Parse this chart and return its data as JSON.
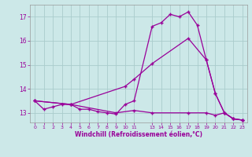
{
  "xlabel": "Windchill (Refroidissement éolien,°C)",
  "background_color": "#cce8e8",
  "grid_color": "#aacccc",
  "line_color": "#990099",
  "ylim": [
    12.6,
    17.5
  ],
  "xlim": [
    -0.5,
    23.5
  ],
  "yticks": [
    13,
    14,
    15,
    16,
    17
  ],
  "xtick_positions": [
    0,
    1,
    2,
    3,
    4,
    5,
    6,
    7,
    8,
    9,
    10,
    11,
    13,
    14,
    15,
    16,
    17,
    18,
    19,
    20,
    21,
    22,
    23
  ],
  "xtick_labels": [
    "0",
    "1",
    "2",
    "3",
    "4",
    "5",
    "6",
    "7",
    "8",
    "9",
    "10",
    "11",
    "13",
    "14",
    "15",
    "16",
    "17",
    "18",
    "19",
    "20",
    "21",
    "22",
    "23"
  ],
  "series1": [
    [
      0,
      13.5
    ],
    [
      1,
      13.15
    ],
    [
      2,
      13.25
    ],
    [
      3,
      13.35
    ],
    [
      4,
      13.35
    ],
    [
      5,
      13.15
    ],
    [
      6,
      13.15
    ],
    [
      7,
      13.05
    ],
    [
      8,
      13.0
    ],
    [
      9,
      12.95
    ],
    [
      10,
      13.35
    ],
    [
      11,
      13.5
    ],
    [
      13,
      16.6
    ],
    [
      14,
      16.75
    ],
    [
      15,
      17.1
    ],
    [
      16,
      17.0
    ],
    [
      17,
      17.2
    ],
    [
      18,
      16.65
    ],
    [
      19,
      15.2
    ],
    [
      20,
      13.8
    ],
    [
      21,
      13.0
    ],
    [
      22,
      12.75
    ],
    [
      23,
      12.7
    ]
  ],
  "series2": [
    [
      0,
      13.5
    ],
    [
      4,
      13.35
    ],
    [
      10,
      14.1
    ],
    [
      11,
      14.4
    ],
    [
      13,
      15.05
    ],
    [
      17,
      16.1
    ],
    [
      19,
      15.2
    ],
    [
      20,
      13.8
    ],
    [
      21,
      13.0
    ],
    [
      22,
      12.75
    ],
    [
      23,
      12.7
    ]
  ],
  "series3": [
    [
      0,
      13.5
    ],
    [
      4,
      13.35
    ],
    [
      9,
      13.0
    ],
    [
      11,
      13.1
    ],
    [
      13,
      13.0
    ],
    [
      17,
      13.0
    ],
    [
      19,
      13.0
    ],
    [
      20,
      12.9
    ],
    [
      21,
      13.0
    ],
    [
      22,
      12.75
    ],
    [
      23,
      12.7
    ]
  ]
}
